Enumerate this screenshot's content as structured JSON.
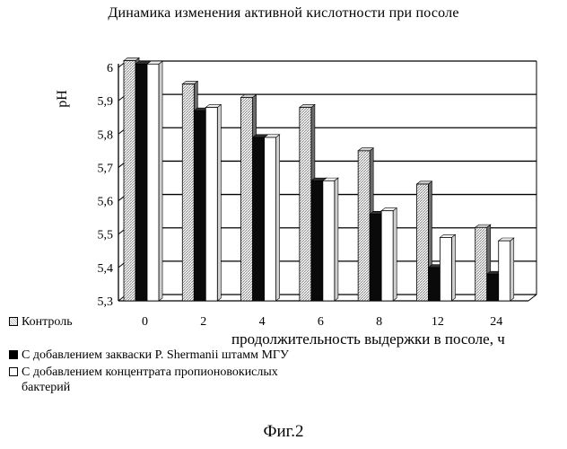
{
  "chart_data": {
    "type": "bar",
    "title": "Динамика изменения активной кислотности при посоле",
    "ylabel": "pH",
    "xlabel": "продолжительность выдержки в посоле, ч",
    "categories": [
      "0",
      "2",
      "4",
      "6",
      "8",
      "12",
      "24"
    ],
    "ylim": [
      5.3,
      6.0
    ],
    "yticks": [
      "6",
      "5,9",
      "5,8",
      "5,7",
      "5,6",
      "5,5",
      "5,4",
      "5,3"
    ],
    "grid": true,
    "legend_position": "bottom-left",
    "series": [
      {
        "name": "Контроль",
        "values": [
          6.02,
          5.95,
          5.91,
          5.88,
          5.75,
          5.65,
          5.52
        ]
      },
      {
        "name": "С добавлением закваски P. Shermanii штамм МГУ",
        "values": [
          6.01,
          5.87,
          5.79,
          5.66,
          5.56,
          5.4,
          5.38
        ]
      },
      {
        "name": "С добавлением концентрата пропионовокислых бактерий",
        "values": [
          6.01,
          5.88,
          5.79,
          5.66,
          5.57,
          5.49,
          5.48
        ]
      }
    ]
  },
  "figure_caption": "Фиг.2"
}
